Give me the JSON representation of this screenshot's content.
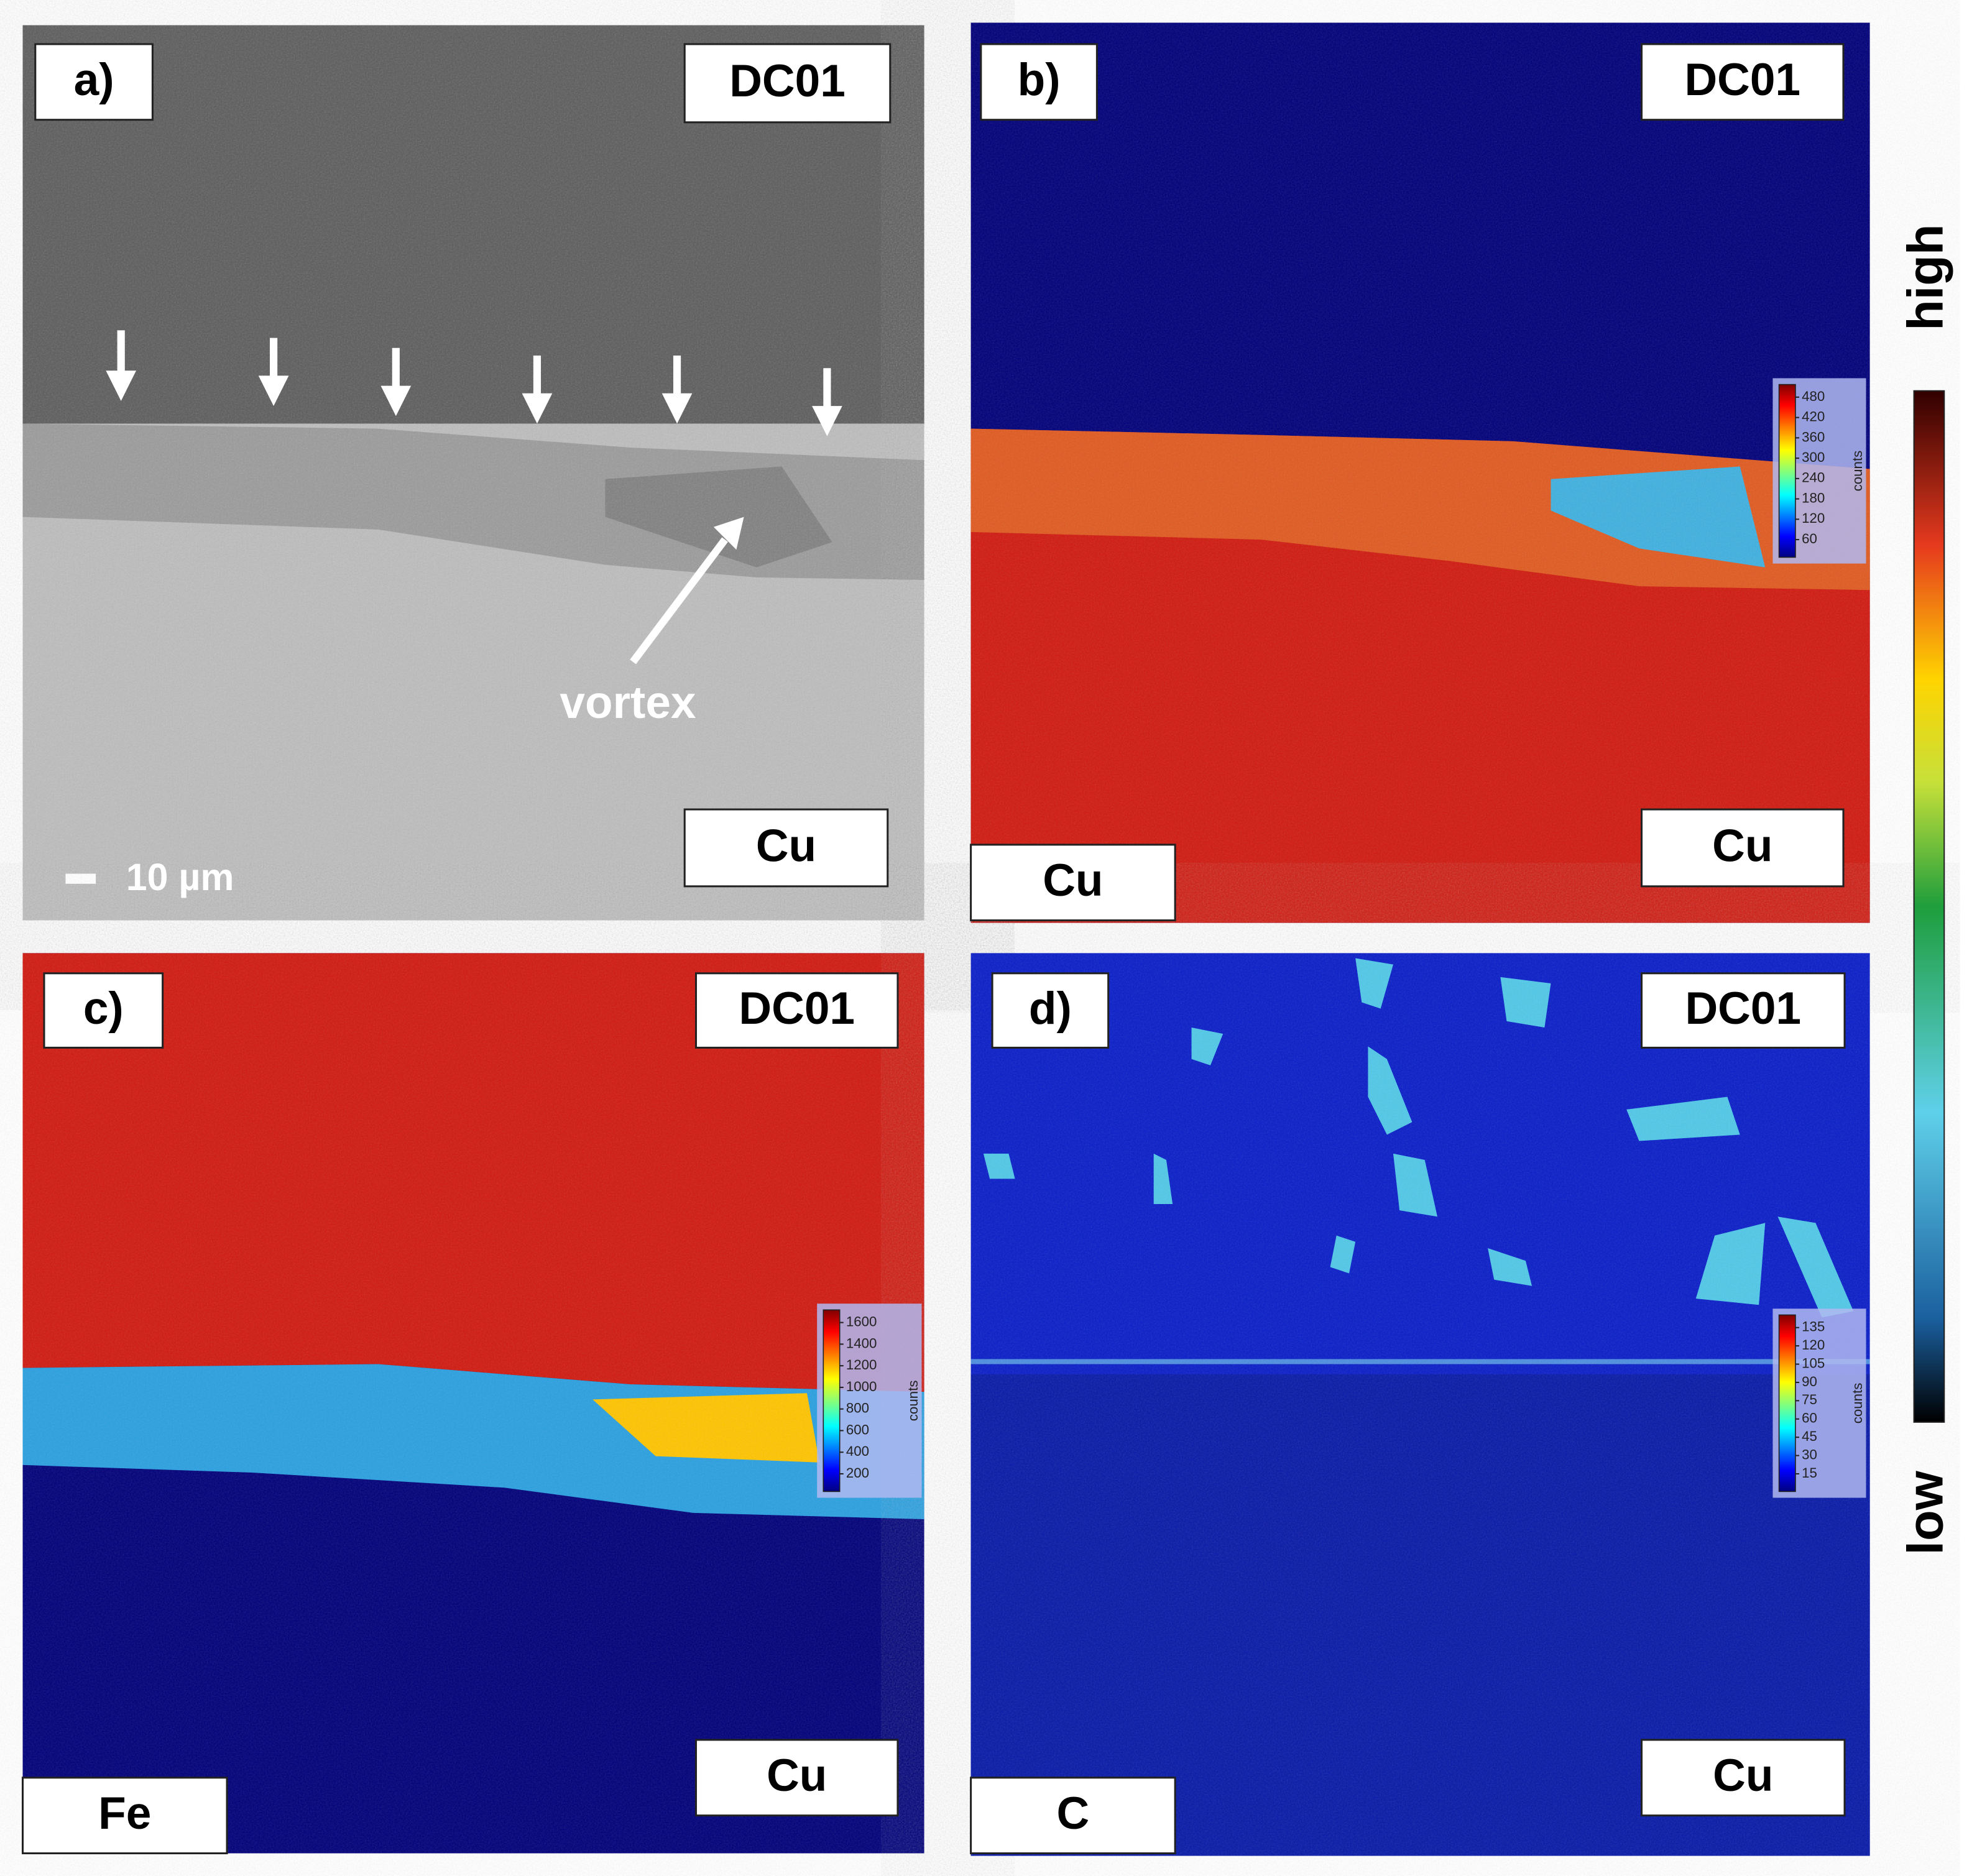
{
  "panels": [
    {
      "label": "a)",
      "top_label": "DC01",
      "bottom_label": "Cu",
      "scale_bar": "10 µm",
      "annotation": "vortex"
    },
    {
      "label": "b)",
      "top_label": "DC01",
      "bottom_label": "Cu",
      "element": "Cu",
      "colorbar": {
        "ticks": [
          480,
          420,
          360,
          300,
          240,
          180,
          120,
          60
        ],
        "unit": "counts"
      }
    },
    {
      "label": "c)",
      "top_label": "DC01",
      "bottom_label": "Cu",
      "element": "Fe",
      "colorbar": {
        "ticks": [
          1600,
          1400,
          1200,
          1000,
          800,
          600,
          400,
          200
        ],
        "unit": "counts"
      }
    },
    {
      "label": "d)",
      "top_label": "DC01",
      "bottom_label": "Cu",
      "element": "C",
      "colorbar": {
        "ticks": [
          135,
          120,
          105,
          90,
          75,
          60,
          45,
          30,
          15
        ],
        "unit": "counts"
      }
    }
  ],
  "colorbar": {
    "high": "high",
    "low": "low"
  }
}
